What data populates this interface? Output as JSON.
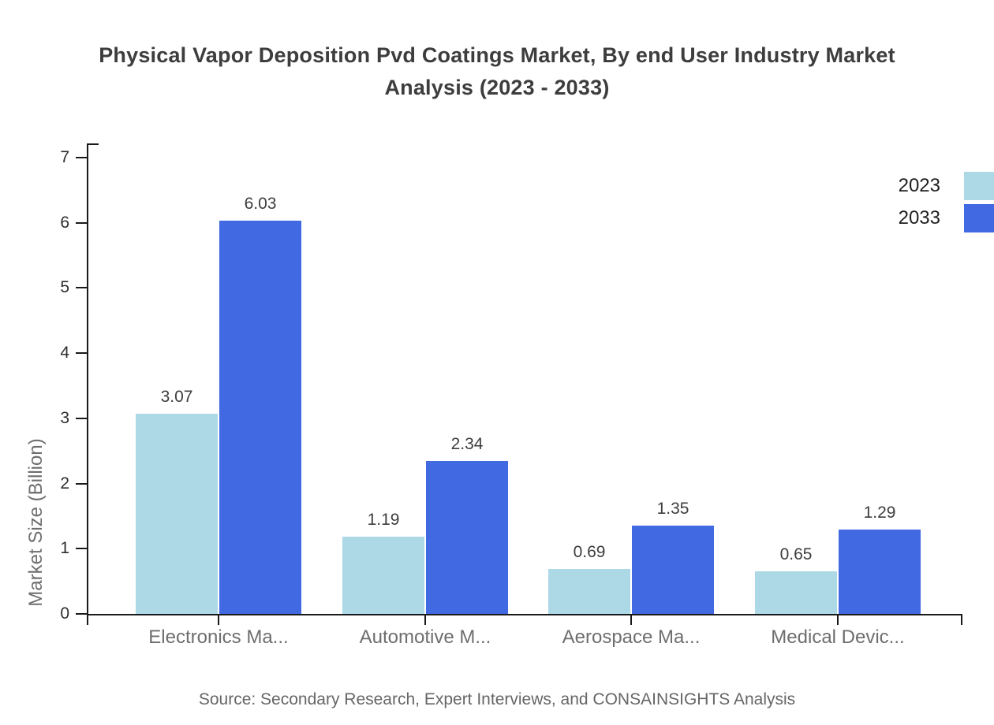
{
  "title": "Physical Vapor Deposition Pvd Coatings Market, By end User Industry Market Analysis (2023 - 2033)",
  "source": "Source: Secondary Research, Expert Interviews, and CONSAINSIGHTS Analysis",
  "chart_data": {
    "type": "bar",
    "title": "Physical Vapor Deposition Pvd Coatings Market, By end User Industry Market Analysis (2023 - 2033)",
    "categories": [
      "Electronics Ma...",
      "Automotive M...",
      "Aerospace Ma...",
      "Medical Devic..."
    ],
    "series": [
      {
        "name": "2023",
        "color": "#ADD8E6",
        "values": [
          3.07,
          1.19,
          0.69,
          0.65
        ],
        "labels": [
          "3.07",
          "1.19",
          "0.69",
          "0.65"
        ]
      },
      {
        "name": "2033",
        "color": "#4169E1",
        "values": [
          6.03,
          2.34,
          1.35,
          1.29
        ],
        "labels": [
          "6.03",
          "2.34",
          "1.35",
          "1.29"
        ]
      }
    ],
    "xlabel": "",
    "ylabel": "Market Size (Billion)",
    "ylim": [
      0,
      7
    ],
    "yticks": [
      "0",
      "1",
      "2",
      "3",
      "4",
      "5",
      "6",
      "7"
    ],
    "grid": false,
    "legend_position": "top-right",
    "value_labels": true,
    "axis_color": "#1a1a1a"
  }
}
